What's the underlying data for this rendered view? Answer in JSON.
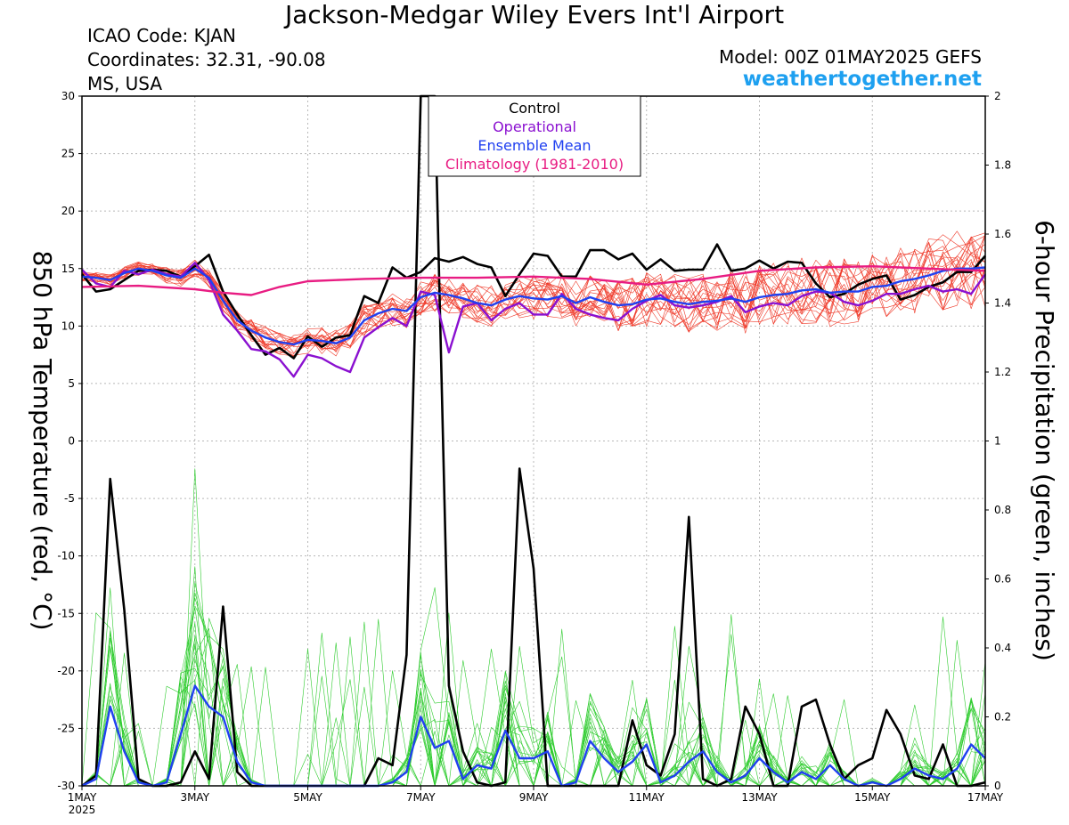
{
  "header": {
    "title": "Jackson-Medgar Wiley Evers Int'l Airport",
    "icao": "ICAO Code: KJAN",
    "coordinates": "Coordinates: 32.31, -90.08",
    "region": "MS, USA",
    "model": "Model: 00Z 01MAY2025 GEFS",
    "site": "weathertogether.net"
  },
  "colors": {
    "control": "#000000",
    "operational": "#8a10d0",
    "ensemble_mean": "#2040f0",
    "climatology": "#e81c82",
    "members_temp": "#ef3a2a",
    "members_precip": "#2ecc2e",
    "site": "#1ea0f0"
  },
  "chart_data": {
    "type": "line",
    "xlabel": "",
    "ylabel_left": "850 hPa Temperature (red, °C)",
    "ylabel_right": "6-hour Precipitation (green, inches)",
    "xlim": [
      0,
      16
    ],
    "ylim_left": [
      -30,
      30
    ],
    "ylim_right": [
      0,
      2
    ],
    "grid": true,
    "x_ticks": [
      {
        "x": 0,
        "label": "1MAY",
        "sub": "2025"
      },
      {
        "x": 2,
        "label": "3MAY"
      },
      {
        "x": 4,
        "label": "5MAY"
      },
      {
        "x": 6,
        "label": "7MAY"
      },
      {
        "x": 8,
        "label": "9MAY"
      },
      {
        "x": 10,
        "label": "11MAY"
      },
      {
        "x": 12,
        "label": "13MAY"
      },
      {
        "x": 14,
        "label": "15MAY"
      },
      {
        "x": 16,
        "label": "17MAY"
      }
    ],
    "y_left_ticks": [
      "-30",
      "-25",
      "-20",
      "-15",
      "-10",
      "-5",
      "0",
      "5",
      "10",
      "15",
      "20",
      "25",
      "30"
    ],
    "y_right_ticks": [
      "0",
      "0.2",
      "0.4",
      "0.6",
      "0.8",
      "1",
      "1.2",
      "1.4",
      "1.6",
      "1.8",
      "2"
    ],
    "legend": {
      "placement": "top-center",
      "entries": [
        {
          "label": "Control",
          "color": "#000000"
        },
        {
          "label": "Operational",
          "color": "#8a10d0"
        },
        {
          "label": "Ensemble Mean",
          "color": "#2040f0"
        },
        {
          "label": "Climatology (1981-2010)",
          "color": "#e81c82"
        }
      ]
    },
    "temperature_series": [
      {
        "key": "control",
        "color": "#000000",
        "width": 2.6,
        "x": [
          0,
          0.25,
          0.5,
          0.75,
          1,
          1.25,
          1.5,
          1.75,
          2,
          2.25,
          2.5,
          2.75,
          3,
          3.25,
          3.5,
          3.75,
          4,
          4.25,
          4.5,
          4.75,
          5,
          5.25,
          5.5,
          5.75,
          6,
          6.25,
          6.5,
          6.75,
          7,
          7.25,
          7.5,
          7.75,
          8,
          8.25,
          8.5,
          8.75,
          9,
          9.25,
          9.5,
          9.75,
          10,
          10.25,
          10.5,
          10.75,
          11,
          11.25,
          11.5,
          11.75,
          12,
          12.25,
          12.5,
          12.75,
          13,
          13.25,
          13.5,
          13.75,
          14,
          14.25,
          14.5,
          14.75,
          15,
          15.25,
          15.5,
          15.75,
          16
        ],
        "y": [
          14.5,
          13,
          13.2,
          14,
          14.8,
          14.9,
          14.8,
          14.3,
          15.2,
          16.2,
          13,
          11,
          9.2,
          7.5,
          8.1,
          7.2,
          9.1,
          8.2,
          9,
          9.2,
          12.6,
          12,
          15.1,
          14.2,
          14.7,
          15.9,
          15.6,
          16,
          15.4,
          15.1,
          12.6,
          14.5,
          16.3,
          16.1,
          14.3,
          14.3,
          16.6,
          16.6,
          15.8,
          16.3,
          14.9,
          15.8,
          14.8,
          14.9,
          14.9,
          17.1,
          14.8,
          15,
          15.7,
          15,
          15.6,
          15.5,
          13.7,
          12.5,
          12.8,
          13.6,
          14.1,
          14.4,
          12.3,
          12.7,
          13.4,
          13.8,
          14.7,
          14.7,
          16.1
        ]
      },
      {
        "key": "operational",
        "color": "#8a10d0",
        "width": 2.4,
        "x": [
          0,
          0.25,
          0.5,
          0.75,
          1,
          1.25,
          1.5,
          1.75,
          2,
          2.25,
          2.5,
          2.75,
          3,
          3.25,
          3.5,
          3.75,
          4,
          4.25,
          4.5,
          4.75,
          5,
          5.25,
          5.5,
          5.75,
          6,
          6.25,
          6.5,
          6.75,
          7,
          7.25,
          7.5,
          7.75,
          8,
          8.25,
          8.5,
          8.75,
          9,
          9.25,
          9.5,
          9.75,
          10,
          10.25,
          10.5,
          10.75,
          11,
          11.25,
          11.5,
          11.75,
          12,
          12.25,
          12.5,
          12.75,
          13,
          13.25,
          13.5,
          13.75,
          14,
          14.25,
          14.5,
          14.75,
          15,
          15.25,
          15.5,
          15.75,
          16
        ],
        "y": [
          14.9,
          13.7,
          13.4,
          14.8,
          14.5,
          14.9,
          14.5,
          14.3,
          15.5,
          14,
          11,
          9.6,
          8,
          7.8,
          7.1,
          5.6,
          7.5,
          7.2,
          6.5,
          6,
          9,
          9.9,
          10.7,
          10,
          13,
          12.7,
          7.7,
          11.7,
          12,
          10.5,
          11.5,
          12,
          11,
          11,
          12.8,
          11.5,
          11,
          10.7,
          10.5,
          11.5,
          12.2,
          12.7,
          11.8,
          11.6,
          11.8,
          12.1,
          12.6,
          11.2,
          11.7,
          12,
          11.8,
          12.6,
          13,
          12.9,
          12.1,
          11.8,
          12.2,
          12.8,
          12.8,
          13.2,
          13.5,
          13,
          13.2,
          12.8,
          14.5
        ]
      },
      {
        "key": "ensemble_mean",
        "color": "#2040f0",
        "width": 2.4,
        "x": [
          0,
          0.25,
          0.5,
          0.75,
          1,
          1.25,
          1.5,
          1.75,
          2,
          2.25,
          2.5,
          2.75,
          3,
          3.25,
          3.5,
          3.75,
          4,
          4.25,
          4.5,
          4.75,
          5,
          5.25,
          5.5,
          5.75,
          6,
          6.25,
          6.5,
          6.75,
          7,
          7.25,
          7.5,
          7.75,
          8,
          8.25,
          8.5,
          8.75,
          9,
          9.25,
          9.5,
          9.75,
          10,
          10.25,
          10.5,
          10.75,
          11,
          11.25,
          11.5,
          11.75,
          12,
          12.25,
          12.5,
          12.75,
          13,
          13.25,
          13.5,
          13.75,
          14,
          14.25,
          14.5,
          14.75,
          15,
          15.25,
          15.5,
          15.75,
          16
        ],
        "y": [
          14.3,
          14.2,
          14,
          14.6,
          15,
          14.8,
          14.4,
          14.2,
          15,
          14.2,
          12.2,
          10.5,
          9.6,
          9,
          8.6,
          8.4,
          8.8,
          8.7,
          8.5,
          9,
          10.5,
          11.1,
          11.5,
          11.3,
          12.5,
          12.9,
          12.7,
          12.4,
          12,
          11.8,
          12.3,
          12.6,
          12.4,
          12.3,
          12.6,
          12,
          12.5,
          12.1,
          11.8,
          11.9,
          12.3,
          12.4,
          12.1,
          11.9,
          12.1,
          12.2,
          12.4,
          12.1,
          12.5,
          12.7,
          12.8,
          13.1,
          13.2,
          12.9,
          13,
          13,
          13.4,
          13.5,
          13.9,
          14.1,
          14.4,
          14.8,
          15,
          15,
          15.1
        ]
      },
      {
        "key": "climatology",
        "color": "#e81c82",
        "width": 2.4,
        "x": [
          0,
          1,
          2,
          2.5,
          3,
          3.5,
          4,
          4.5,
          5,
          6,
          7,
          8,
          9,
          10,
          11,
          12,
          13,
          14,
          15,
          16
        ],
        "y": [
          13.4,
          13.5,
          13.2,
          12.9,
          12.7,
          13.4,
          13.9,
          14,
          14.1,
          14.2,
          14.2,
          14.3,
          14.1,
          13.6,
          14.1,
          14.8,
          15.1,
          15.2,
          15,
          14.8
        ]
      }
    ],
    "precipitation_series": [
      {
        "key": "control",
        "color": "#000000",
        "width": 2.6,
        "x": [
          0,
          0.25,
          0.5,
          0.75,
          1,
          1.25,
          1.5,
          1.75,
          2,
          2.25,
          2.5,
          2.75,
          3,
          3.25,
          3.5,
          3.75,
          4,
          4.25,
          4.5,
          4.75,
          5,
          5.25,
          5.5,
          5.75,
          6,
          6.25,
          6.5,
          6.75,
          7,
          7.25,
          7.5,
          7.75,
          8,
          8.25,
          8.5,
          8.75,
          9,
          9.25,
          9.5,
          9.75,
          10,
          10.25,
          10.5,
          10.75,
          11,
          11.25,
          11.5,
          11.75,
          12,
          12.25,
          12.5,
          12.75,
          13,
          13.25,
          13.5,
          13.75,
          14,
          14.25,
          14.5,
          14.75,
          15,
          15.25,
          15.5,
          15.75,
          16
        ],
        "y": [
          0,
          0.03,
          0.89,
          0.51,
          0.02,
          0,
          0,
          0.01,
          0.1,
          0.02,
          0.52,
          0.04,
          0,
          0,
          0,
          0,
          0,
          0,
          0,
          0,
          0,
          0.08,
          0.06,
          0.38,
          2.02,
          2.02,
          0.29,
          0.1,
          0.01,
          0,
          0.01,
          0.92,
          0.63,
          0,
          0,
          0,
          0,
          0,
          0,
          0.19,
          0.06,
          0.03,
          0.15,
          0.78,
          0.02,
          0,
          0.02,
          0.23,
          0.15,
          0,
          0,
          0.23,
          0.25,
          0.12,
          0.02,
          0.06,
          0.08,
          0.22,
          0.15,
          0.03,
          0.02,
          0.12,
          0,
          0,
          0.01
        ]
      },
      {
        "key": "ensemble_mean",
        "color": "#2040f0",
        "width": 2.4,
        "x": [
          0,
          0.25,
          0.5,
          0.75,
          1,
          1.25,
          1.5,
          1.75,
          2,
          2.25,
          2.5,
          2.75,
          3,
          3.25,
          3.5,
          3.75,
          4,
          4.25,
          4.5,
          4.75,
          5,
          5.25,
          5.5,
          5.75,
          6,
          6.25,
          6.5,
          6.75,
          7,
          7.25,
          7.5,
          7.75,
          8,
          8.25,
          8.5,
          8.75,
          9,
          9.25,
          9.5,
          9.75,
          10,
          10.25,
          10.5,
          10.75,
          11,
          11.25,
          11.5,
          11.75,
          12,
          12.25,
          12.5,
          12.75,
          13,
          13.25,
          13.5,
          13.75,
          14,
          14.25,
          14.5,
          14.75,
          15,
          15.25,
          15.5,
          15.75,
          16
        ],
        "y": [
          0,
          0.02,
          0.23,
          0.1,
          0.01,
          0,
          0.01,
          0.15,
          0.29,
          0.23,
          0.2,
          0.07,
          0.01,
          0,
          0,
          0,
          0,
          0,
          0,
          0,
          0,
          0,
          0.01,
          0.04,
          0.2,
          0.11,
          0.13,
          0.02,
          0.06,
          0.05,
          0.16,
          0.08,
          0.08,
          0.1,
          0,
          0.01,
          0.13,
          0.08,
          0.04,
          0.07,
          0.12,
          0.01,
          0.03,
          0.07,
          0.1,
          0.04,
          0.01,
          0.03,
          0.08,
          0.04,
          0.01,
          0.04,
          0.02,
          0.06,
          0.02,
          0,
          0.01,
          0,
          0.02,
          0.05,
          0.03,
          0.02,
          0.05,
          0.12,
          0.08
        ]
      }
    ]
  }
}
